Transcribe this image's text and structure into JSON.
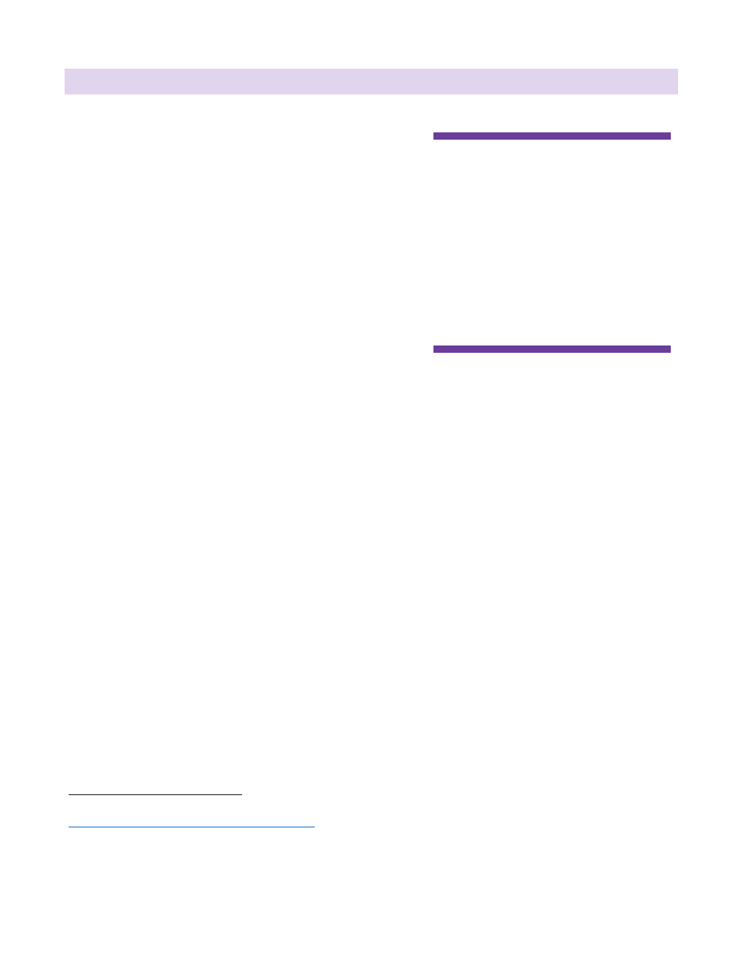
{
  "header": {
    "title": ""
  },
  "colors": {
    "header_band": "#e1d5ed",
    "sidebar_rule": "#6a3d9a",
    "footnote_rule": "#222222",
    "link_underline": "#1a73c8"
  },
  "footnote": {
    "link_text": ""
  }
}
